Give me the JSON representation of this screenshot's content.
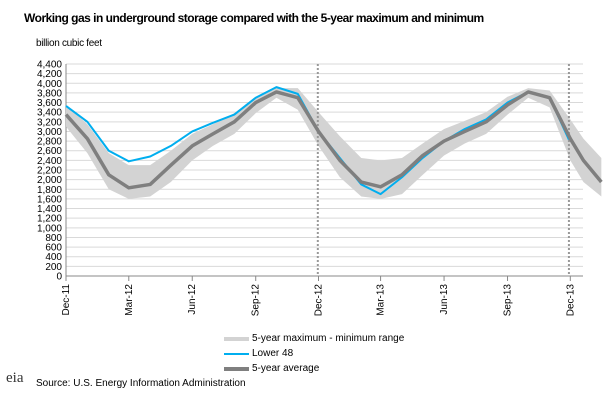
{
  "chart_data": {
    "type": "line",
    "title": "Working gas in underground storage compared with the  5-year maximum and minimum",
    "ylabel": "billion cubic feet",
    "ylim": [
      0,
      4400
    ],
    "yticks": [
      0,
      200,
      400,
      600,
      800,
      1000,
      1200,
      1400,
      1600,
      1800,
      2000,
      2200,
      2400,
      2600,
      2800,
      3000,
      3200,
      3400,
      3600,
      3800,
      4000,
      4200,
      4400
    ],
    "ytick_labels": [
      "0",
      "200",
      "400",
      "600",
      "800",
      "1,000",
      "1,200",
      "1,400",
      "1,600",
      "1,800",
      "2,000",
      "2,200",
      "2,400",
      "2,600",
      "2,800",
      "3,000",
      "3,200",
      "3,400",
      "3,600",
      "3,800",
      "4,000",
      "4,200",
      "4,400"
    ],
    "xticks": [
      "2011-12-01",
      "2012-03-01",
      "2012-06-01",
      "2012-09-01",
      "2012-12-01",
      "2013-03-01",
      "2013-06-01",
      "2013-09-01",
      "2013-12-01"
    ],
    "xtick_labels": [
      "Dec-11",
      "Mar-12",
      "Jun-12",
      "Sep-12",
      "Dec-12",
      "Mar-13",
      "Jun-13",
      "Sep-13",
      "Dec-13"
    ],
    "grid": true,
    "legend_placement": "bottom",
    "vertical_markers": [
      "2012-11-30",
      "2013-11-29"
    ],
    "range": {
      "name": "5-year maximum - minimum range",
      "color": "#d3d3d3",
      "x": [
        "2011-12-01",
        "2012-01-01",
        "2012-02-01",
        "2012-03-01",
        "2012-04-01",
        "2012-05-01",
        "2012-06-01",
        "2012-07-01",
        "2012-08-01",
        "2012-09-01",
        "2012-10-01",
        "2012-11-01",
        "2012-12-01",
        "2013-01-01",
        "2013-02-01",
        "2013-03-01",
        "2013-04-01",
        "2013-05-01",
        "2013-06-01",
        "2013-07-01",
        "2013-08-01",
        "2013-09-01",
        "2013-10-01",
        "2013-11-01",
        "2013-12-01",
        "2013-12-20",
        "2014-01-15"
      ],
      "max": [
        3550,
        3150,
        2550,
        2300,
        2300,
        2600,
        2950,
        3150,
        3380,
        3720,
        3900,
        3900,
        3400,
        2900,
        2450,
        2400,
        2450,
        2750,
        3050,
        3220,
        3400,
        3720,
        3900,
        3850,
        3250,
        2850,
        2450
      ],
      "min": [
        3100,
        2550,
        1800,
        1600,
        1650,
        1950,
        2400,
        2700,
        2950,
        3380,
        3700,
        3450,
        2700,
        2050,
        1650,
        1600,
        1700,
        2100,
        2500,
        2750,
        2950,
        3350,
        3700,
        3500,
        2400,
        1950,
        1650
      ]
    },
    "series": [
      {
        "name": "Lower 48",
        "color": "#00aeef",
        "x": [
          "2011-12-01",
          "2012-01-01",
          "2012-02-01",
          "2012-03-01",
          "2012-04-01",
          "2012-05-01",
          "2012-06-01",
          "2012-07-01",
          "2012-08-01",
          "2012-09-01",
          "2012-10-01",
          "2012-11-01",
          "2012-12-01",
          "2013-01-01",
          "2013-02-01",
          "2013-03-01",
          "2013-04-01",
          "2013-05-01",
          "2013-06-01",
          "2013-07-01",
          "2013-08-01",
          "2013-09-01",
          "2013-10-01",
          "2013-11-01",
          "2013-11-29"
        ],
        "values": [
          3530,
          3200,
          2600,
          2380,
          2480,
          2700,
          3000,
          3180,
          3350,
          3700,
          3920,
          3780,
          3000,
          2450,
          1900,
          1700,
          2050,
          2450,
          2800,
          3050,
          3250,
          3600,
          3820,
          3700,
          2830
        ]
      },
      {
        "name": "5-year average",
        "color": "#7f7f7f",
        "x": [
          "2011-12-01",
          "2012-01-01",
          "2012-02-01",
          "2012-03-01",
          "2012-04-01",
          "2012-05-01",
          "2012-06-01",
          "2012-07-01",
          "2012-08-01",
          "2012-09-01",
          "2012-10-01",
          "2012-11-01",
          "2012-12-01",
          "2013-01-01",
          "2013-02-01",
          "2013-03-01",
          "2013-04-01",
          "2013-05-01",
          "2013-06-01",
          "2013-07-01",
          "2013-08-01",
          "2013-09-01",
          "2013-10-01",
          "2013-11-01",
          "2013-12-01",
          "2013-12-20",
          "2014-01-15"
        ],
        "values": [
          3350,
          2850,
          2100,
          1830,
          1900,
          2300,
          2700,
          2950,
          3200,
          3600,
          3820,
          3700,
          3000,
          2400,
          1950,
          1850,
          2100,
          2500,
          2800,
          3000,
          3200,
          3550,
          3820,
          3700,
          2850,
          2400,
          1950
        ]
      }
    ]
  },
  "source": "Source:  U.S. Energy Information Administration",
  "logo": "eia"
}
